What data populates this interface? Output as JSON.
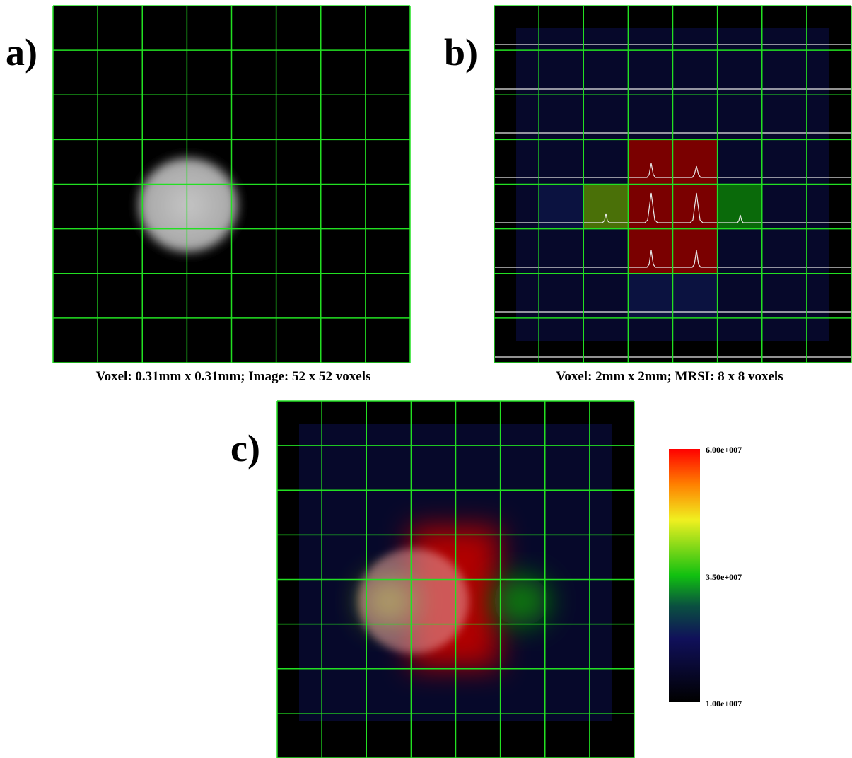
{
  "panels": [
    {
      "label": "a)",
      "caption": "Voxel: 0.31mm x 0.31mm; Image: 52 x 52 voxels"
    },
    {
      "label": "b)",
      "caption": "Voxel: 2mm x 2mm; MRSI: 8 x 8 voxels"
    },
    {
      "label": "c)"
    }
  ],
  "colorbar": {
    "max": "6.00e+007",
    "mid": "3.50e+007",
    "min": "1.00e+007"
  }
}
